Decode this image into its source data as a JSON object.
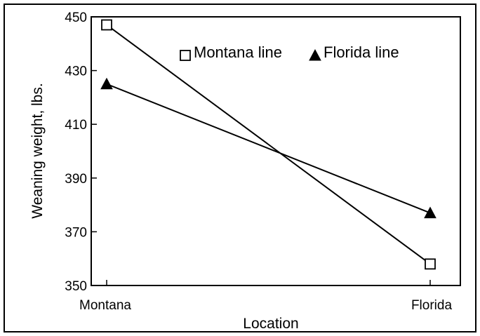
{
  "chart_data": {
    "type": "line",
    "title": "",
    "xlabel": "Location",
    "ylabel": "Weaning weight, lbs.",
    "categories": [
      "Montana",
      "Florida"
    ],
    "ylim": [
      350,
      450
    ],
    "yticks": [
      350,
      370,
      390,
      410,
      430,
      450
    ],
    "grid": false,
    "legend_position": "top",
    "series": [
      {
        "name": "Montana line",
        "marker": "open-square",
        "values": [
          447,
          358
        ]
      },
      {
        "name": "Florida line",
        "marker": "filled-triangle",
        "values": [
          425,
          377
        ]
      }
    ]
  }
}
